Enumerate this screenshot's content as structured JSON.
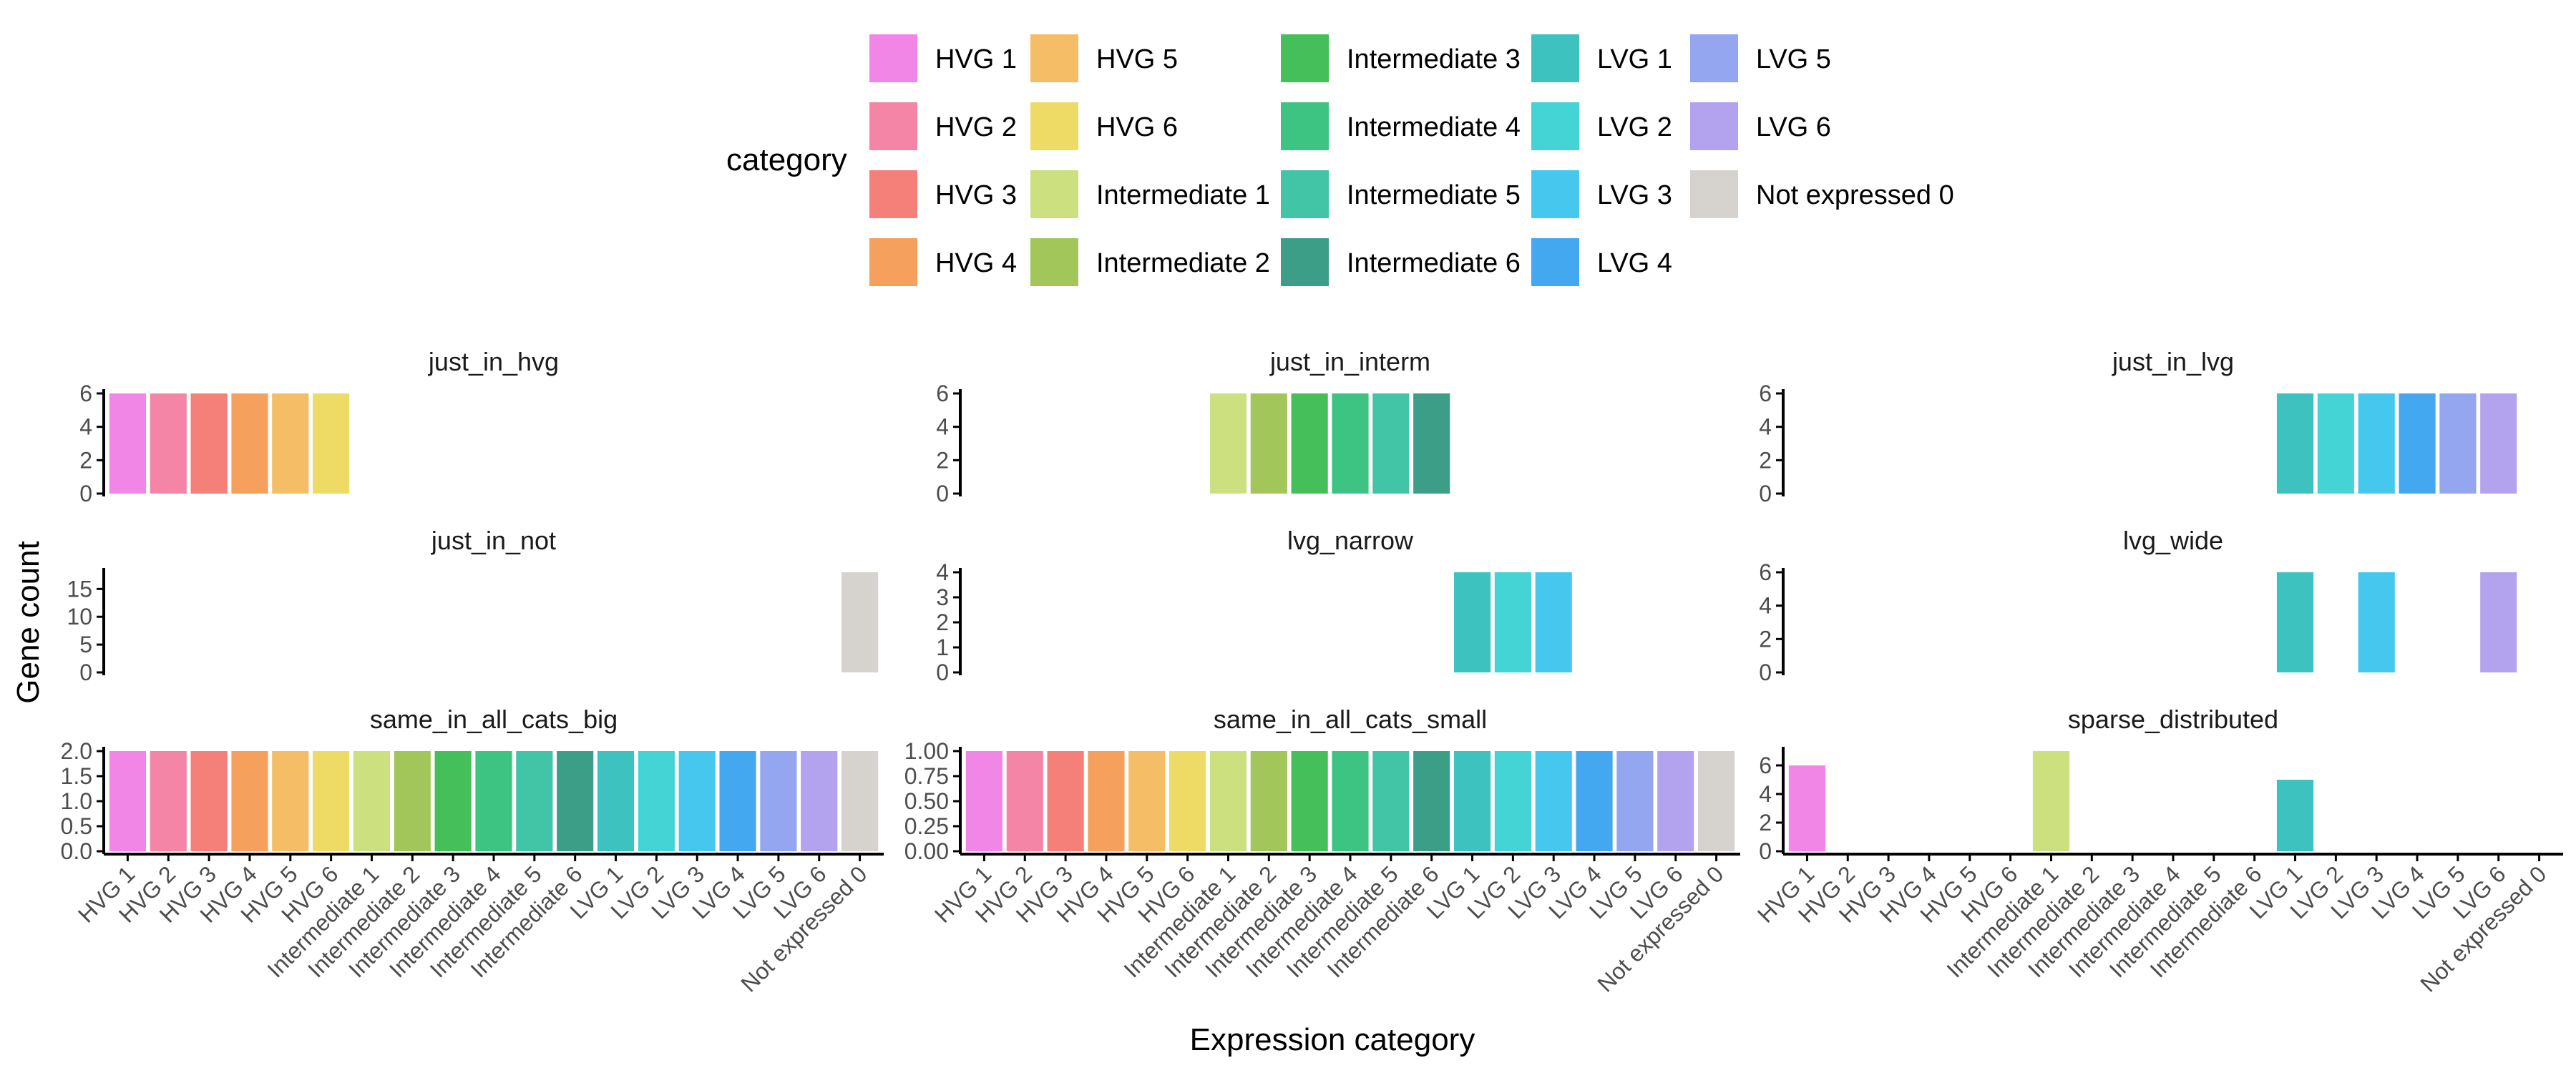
{
  "legend": {
    "title": "category",
    "entries": [
      {
        "label": "HVG 1",
        "color": "#F286E6"
      },
      {
        "label": "HVG 2",
        "color": "#F485A6"
      },
      {
        "label": "HVG 3",
        "color": "#F57F79"
      },
      {
        "label": "HVG 4",
        "color": "#F5A05C"
      },
      {
        "label": "HVG 5",
        "color": "#F5BD65"
      },
      {
        "label": "HVG 6",
        "color": "#EEDB66"
      },
      {
        "label": "Intermediate 1",
        "color": "#CCE07F"
      },
      {
        "label": "Intermediate 2",
        "color": "#A2C65A"
      },
      {
        "label": "Intermediate 3",
        "color": "#44BF59"
      },
      {
        "label": "Intermediate 4",
        "color": "#3DC482"
      },
      {
        "label": "Intermediate 5",
        "color": "#42C4A6"
      },
      {
        "label": "Intermediate 6",
        "color": "#3D9E87"
      },
      {
        "label": "LVG 1",
        "color": "#3DC2BF"
      },
      {
        "label": "LVG 2",
        "color": "#45D4D6"
      },
      {
        "label": "LVG 3",
        "color": "#46C8EE"
      },
      {
        "label": "LVG 4",
        "color": "#44A8F0"
      },
      {
        "label": "LVG 5",
        "color": "#95A6F0"
      },
      {
        "label": "LVG 6",
        "color": "#B3A3EE"
      },
      {
        "label": "Not expressed 0",
        "color": "#D6D3CF"
      }
    ]
  },
  "chart_data": {
    "type": "bar",
    "xlabel": "Expression category",
    "ylabel": "Gene count",
    "categories": [
      "HVG 1",
      "HVG 2",
      "HVG 3",
      "HVG 4",
      "HVG 5",
      "HVG 6",
      "Intermediate 1",
      "Intermediate 2",
      "Intermediate 3",
      "Intermediate 4",
      "Intermediate 5",
      "Intermediate 6",
      "LVG 1",
      "LVG 2",
      "LVG 3",
      "LVG 4",
      "LVG 5",
      "LVG 6",
      "Not expressed 0"
    ],
    "facets": [
      {
        "title": "just_in_hvg",
        "ylim": [
          0,
          6
        ],
        "yticks": [
          0,
          2,
          4,
          6
        ],
        "ytick_labels": [
          "0",
          "2",
          "4",
          "6"
        ],
        "x_ticks_shown": false,
        "values": [
          6,
          6,
          6,
          6,
          6,
          6,
          0,
          0,
          0,
          0,
          0,
          0,
          0,
          0,
          0,
          0,
          0,
          0,
          0
        ]
      },
      {
        "title": "just_in_interm",
        "ylim": [
          0,
          6
        ],
        "yticks": [
          0,
          2,
          4,
          6
        ],
        "ytick_labels": [
          "0",
          "2",
          "4",
          "6"
        ],
        "x_ticks_shown": false,
        "values": [
          0,
          0,
          0,
          0,
          0,
          0,
          6,
          6,
          6,
          6,
          6,
          6,
          0,
          0,
          0,
          0,
          0,
          0,
          0
        ]
      },
      {
        "title": "just_in_lvg",
        "ylim": [
          0,
          6
        ],
        "yticks": [
          0,
          2,
          4,
          6
        ],
        "ytick_labels": [
          "0",
          "2",
          "4",
          "6"
        ],
        "x_ticks_shown": false,
        "values": [
          0,
          0,
          0,
          0,
          0,
          0,
          0,
          0,
          0,
          0,
          0,
          0,
          6,
          6,
          6,
          6,
          6,
          6,
          0
        ]
      },
      {
        "title": "just_in_not",
        "ylim": [
          0,
          18
        ],
        "yticks": [
          0,
          5,
          10,
          15
        ],
        "ytick_labels": [
          "0",
          "5",
          "10",
          "15"
        ],
        "x_ticks_shown": false,
        "values": [
          0,
          0,
          0,
          0,
          0,
          0,
          0,
          0,
          0,
          0,
          0,
          0,
          0,
          0,
          0,
          0,
          0,
          0,
          18
        ]
      },
      {
        "title": "lvg_narrow",
        "ylim": [
          0,
          4
        ],
        "yticks": [
          0,
          1,
          2,
          3,
          4
        ],
        "ytick_labels": [
          "0",
          "1",
          "2",
          "3",
          "4"
        ],
        "x_ticks_shown": false,
        "values": [
          0,
          0,
          0,
          0,
          0,
          0,
          0,
          0,
          0,
          0,
          0,
          0,
          4,
          4,
          4,
          0,
          0,
          0,
          0
        ]
      },
      {
        "title": "lvg_wide",
        "ylim": [
          0,
          6
        ],
        "yticks": [
          0,
          2,
          4,
          6
        ],
        "ytick_labels": [
          "0",
          "2",
          "4",
          "6"
        ],
        "x_ticks_shown": false,
        "values": [
          0,
          0,
          0,
          0,
          0,
          0,
          0,
          0,
          0,
          0,
          0,
          0,
          6,
          0,
          6,
          0,
          0,
          6,
          0
        ]
      },
      {
        "title": "same_in_all_cats_big",
        "ylim": [
          0,
          2
        ],
        "yticks": [
          0,
          0.5,
          1,
          1.5,
          2
        ],
        "ytick_labels": [
          "0.0",
          "0.5",
          "1.0",
          "1.5",
          "2.0"
        ],
        "x_ticks_shown": true,
        "values": [
          2,
          2,
          2,
          2,
          2,
          2,
          2,
          2,
          2,
          2,
          2,
          2,
          2,
          2,
          2,
          2,
          2,
          2,
          2
        ]
      },
      {
        "title": "same_in_all_cats_small",
        "ylim": [
          0,
          1
        ],
        "yticks": [
          0,
          0.25,
          0.5,
          0.75,
          1
        ],
        "ytick_labels": [
          "0.00",
          "0.25",
          "0.50",
          "0.75",
          "1.00"
        ],
        "x_ticks_shown": true,
        "values": [
          1,
          1,
          1,
          1,
          1,
          1,
          1,
          1,
          1,
          1,
          1,
          1,
          1,
          1,
          1,
          1,
          1,
          1,
          1
        ]
      },
      {
        "title": "sparse_distributed",
        "ylim": [
          0,
          7
        ],
        "yticks": [
          0,
          2,
          4,
          6
        ],
        "ytick_labels": [
          "0",
          "2",
          "4",
          "6"
        ],
        "x_ticks_shown": true,
        "values": [
          6,
          0,
          0,
          0,
          0,
          0,
          7,
          0,
          0,
          0,
          0,
          0,
          5,
          0,
          0,
          0,
          0,
          0,
          0
        ]
      }
    ]
  }
}
